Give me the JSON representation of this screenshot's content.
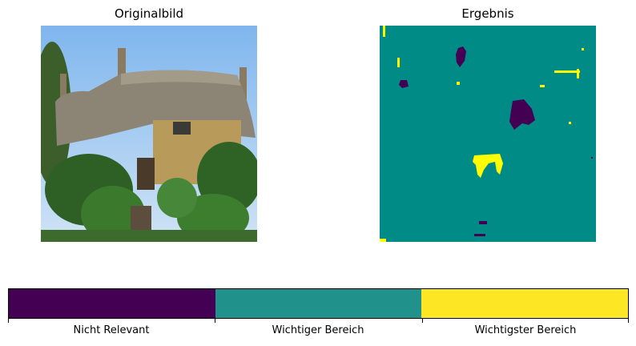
{
  "panels": {
    "left_title": "Originalbild",
    "right_title": "Ergebnis"
  },
  "colorbar": {
    "labels": [
      "Nicht Relevant",
      "Wichtiger Bereich",
      "Wichtigster Bereich"
    ],
    "colors": [
      "#440154",
      "#21918c",
      "#fde725"
    ]
  },
  "colors": {
    "low": "#440154",
    "mid": "#008b87",
    "high": "#ffff00"
  }
}
